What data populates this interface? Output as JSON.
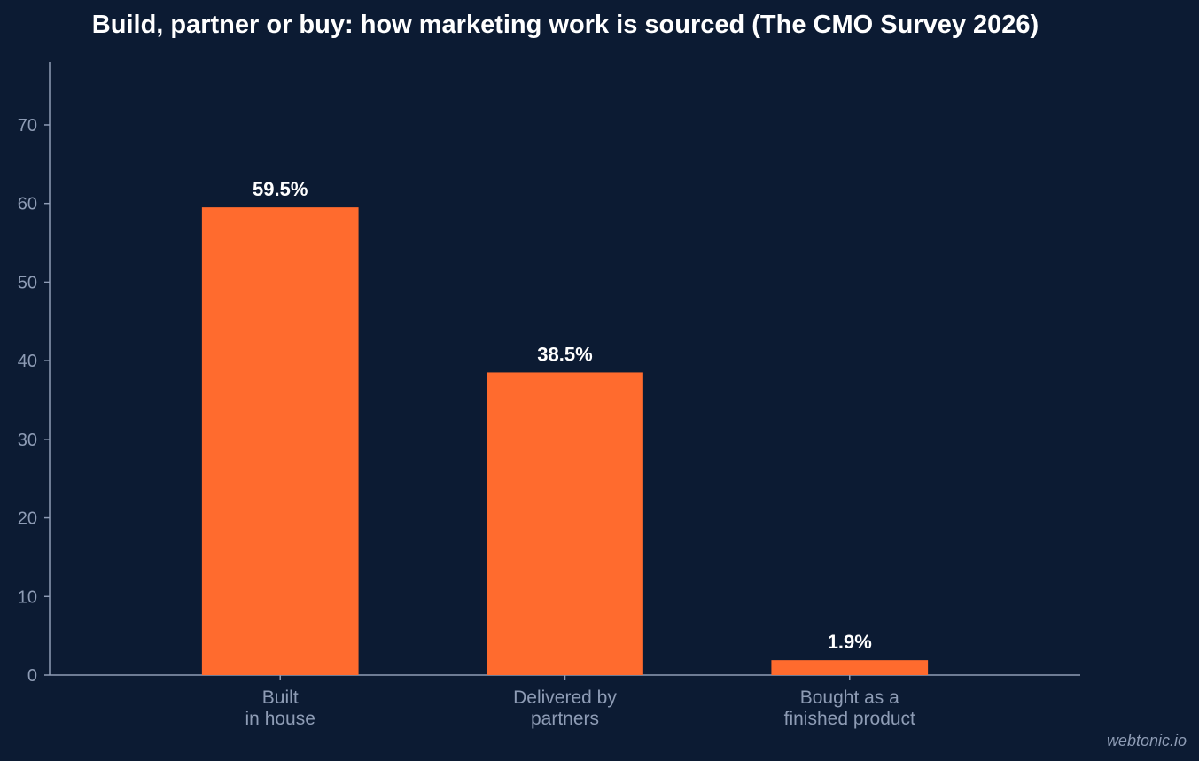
{
  "chart_data": {
    "type": "bar",
    "title": "Build, partner or buy: how marketing work is sourced (The CMO Survey 2026)",
    "categories": [
      [
        "Built",
        "in house"
      ],
      [
        "Delivered by",
        "partners"
      ],
      [
        "Bought as a",
        "finished product"
      ]
    ],
    "values": [
      59.5,
      38.5,
      1.9
    ],
    "value_labels": [
      "59.5%",
      "38.5%",
      "1.9%"
    ],
    "yticks": [
      0,
      10,
      20,
      30,
      40,
      50,
      60,
      70
    ],
    "ylim": [
      0,
      78
    ],
    "grid": false,
    "legend": "none",
    "xlabel": "",
    "ylabel": ""
  },
  "colors": {
    "background": "#0c1b33",
    "bar": "#ff6b2e",
    "axis": "#8e9cb5",
    "value_label": "#ffffff"
  },
  "watermark": "webtonic.io"
}
